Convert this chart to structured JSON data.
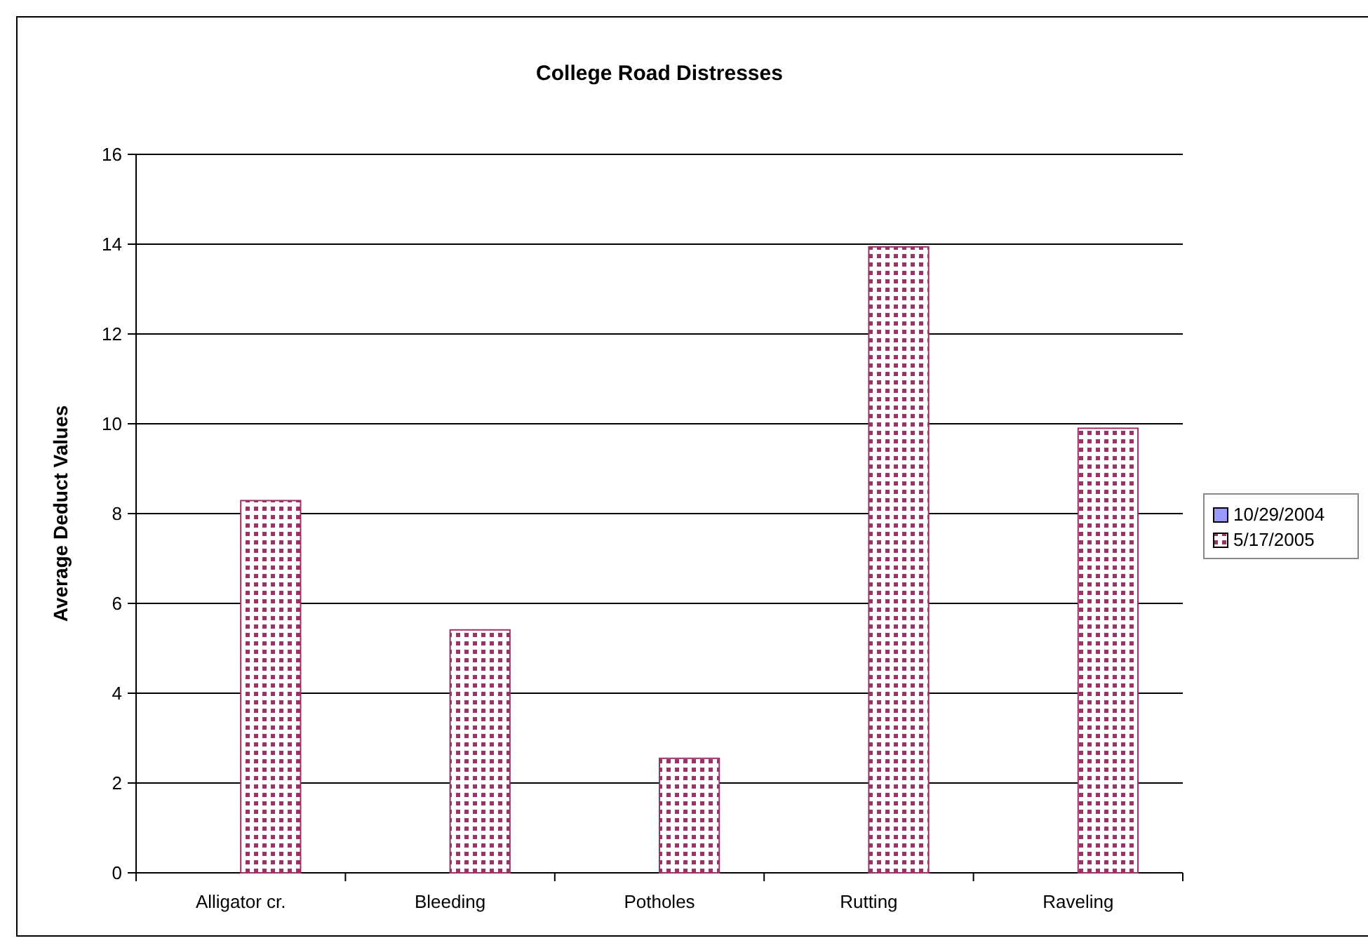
{
  "chart_data": {
    "type": "bar",
    "title": "College Road Distresses",
    "ylabel": "Average Deduct Values",
    "categories": [
      "Alligator cr.",
      "Bleeding",
      "Potholes",
      "Rutting",
      "Raveling"
    ],
    "series": [
      {
        "name": "10/29/2004",
        "color": "#9999ff",
        "values": [
          0,
          0,
          0,
          0,
          0
        ]
      },
      {
        "name": "5/17/2005",
        "color": "#993366",
        "values": [
          8.29,
          5.41,
          2.55,
          13.94,
          9.9
        ]
      }
    ],
    "ylim": [
      0,
      16
    ],
    "yticks": [
      0,
      2,
      4,
      6,
      8,
      10,
      12,
      14,
      16
    ],
    "grid": "y",
    "legend": "right"
  }
}
